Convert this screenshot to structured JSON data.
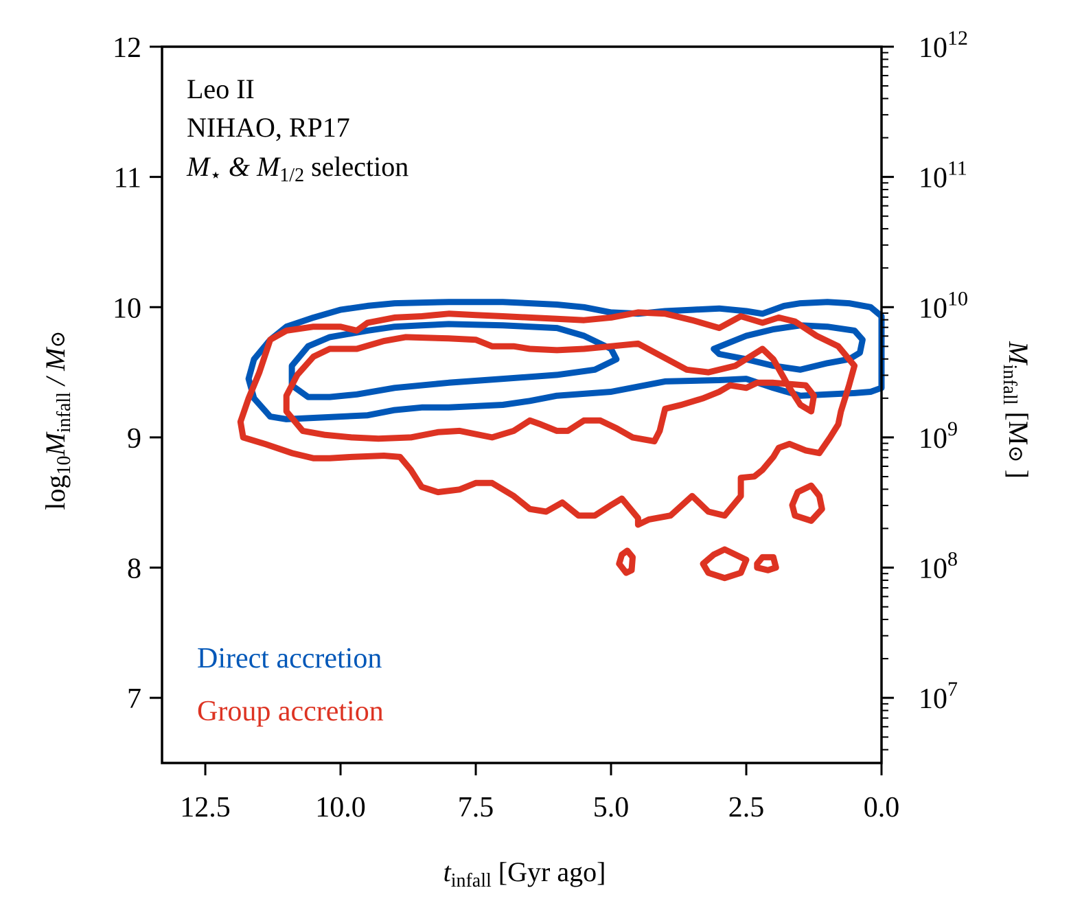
{
  "chart_data": {
    "type": "contour",
    "annotation_lines": [
      {
        "text": "Leo II"
      },
      {
        "text": "NIHAO, RP17"
      },
      {
        "main1": "M",
        "sub1": "⋆",
        "mid": " & M",
        "sub2": "1/2",
        "tail": " selection"
      }
    ],
    "xlabel": {
      "main": "t",
      "sub": "infall",
      "tail": " [Gyr ago]"
    },
    "ylabel": {
      "pre": "log",
      "sub1": "10",
      "main": "M",
      "sub2": "infall",
      "tail": " / M",
      "sym": "⊙"
    },
    "ylabel_right": {
      "main": "M",
      "sub": "infall",
      "tail": " [M",
      "sym": "⊙",
      "end": " ]"
    },
    "xlim": [
      13.3,
      0.0
    ],
    "ylim": [
      6.5,
      12.0
    ],
    "x_ticks": [
      {
        "value": 12.5,
        "label": "12.5"
      },
      {
        "value": 10.0,
        "label": "10.0"
      },
      {
        "value": 7.5,
        "label": "7.5"
      },
      {
        "value": 5.0,
        "label": "5.0"
      },
      {
        "value": 2.5,
        "label": "2.5"
      },
      {
        "value": 0.0,
        "label": "0.0"
      }
    ],
    "y_ticks": [
      {
        "value": 7,
        "label": "7"
      },
      {
        "value": 8,
        "label": "8"
      },
      {
        "value": 9,
        "label": "9"
      },
      {
        "value": 10,
        "label": "10"
      },
      {
        "value": 11,
        "label": "11"
      },
      {
        "value": 12,
        "label": "12"
      }
    ],
    "y_ticks_right": [
      {
        "value": 7,
        "base": "10",
        "exp": "7"
      },
      {
        "value": 8,
        "base": "10",
        "exp": "8"
      },
      {
        "value": 9,
        "base": "10",
        "exp": "9"
      },
      {
        "value": 10,
        "base": "10",
        "exp": "10"
      },
      {
        "value": 11,
        "base": "10",
        "exp": "11"
      },
      {
        "value": 12,
        "base": "10",
        "exp": "12"
      }
    ],
    "right_axis_scale": "log",
    "legend_position": "lower-left",
    "series": [
      {
        "name": "Direct accretion",
        "color": "#0057b8",
        "contours": [
          [
            [
              11.7,
              9.45
            ],
            [
              11.6,
              9.6
            ],
            [
              11.3,
              9.75
            ],
            [
              11.0,
              9.85
            ],
            [
              10.5,
              9.92
            ],
            [
              10.0,
              9.98
            ],
            [
              9.5,
              10.01
            ],
            [
              9.0,
              10.03
            ],
            [
              8.0,
              10.04
            ],
            [
              7.0,
              10.04
            ],
            [
              6.0,
              10.02
            ],
            [
              5.5,
              10.0
            ],
            [
              5.0,
              9.96
            ],
            [
              4.5,
              9.95
            ],
            [
              4.0,
              9.97
            ],
            [
              3.5,
              9.98
            ],
            [
              3.0,
              9.99
            ],
            [
              2.5,
              9.97
            ],
            [
              2.2,
              9.95
            ],
            [
              2.0,
              9.98
            ],
            [
              1.8,
              10.01
            ],
            [
              1.5,
              10.03
            ],
            [
              1.0,
              10.04
            ],
            [
              0.6,
              10.03
            ],
            [
              0.2,
              10.0
            ],
            [
              0.0,
              9.93
            ],
            [
              0.0,
              9.38
            ],
            [
              0.2,
              9.35
            ],
            [
              0.5,
              9.34
            ],
            [
              1.0,
              9.33
            ],
            [
              1.5,
              9.32
            ],
            [
              2.0,
              9.38
            ],
            [
              2.5,
              9.45
            ],
            [
              3.0,
              9.44
            ],
            [
              4.0,
              9.43
            ],
            [
              5.0,
              9.35
            ],
            [
              6.0,
              9.32
            ],
            [
              6.5,
              9.28
            ],
            [
              7.0,
              9.25
            ],
            [
              8.0,
              9.23
            ],
            [
              8.5,
              9.23
            ],
            [
              9.0,
              9.21
            ],
            [
              9.5,
              9.17
            ],
            [
              10.0,
              9.16
            ],
            [
              10.5,
              9.15
            ],
            [
              11.0,
              9.14
            ],
            [
              11.3,
              9.16
            ],
            [
              11.6,
              9.3
            ],
            [
              11.7,
              9.45
            ]
          ],
          [
            [
              10.9,
              9.4
            ],
            [
              10.9,
              9.55
            ],
            [
              10.6,
              9.7
            ],
            [
              10.2,
              9.77
            ],
            [
              9.5,
              9.82
            ],
            [
              9.0,
              9.85
            ],
            [
              8.5,
              9.86
            ],
            [
              8.0,
              9.87
            ],
            [
              7.0,
              9.86
            ],
            [
              6.0,
              9.84
            ],
            [
              5.5,
              9.78
            ],
            [
              5.0,
              9.68
            ],
            [
              4.9,
              9.6
            ],
            [
              5.0,
              9.58
            ],
            [
              5.3,
              9.52
            ],
            [
              6.0,
              9.48
            ],
            [
              7.0,
              9.45
            ],
            [
              8.0,
              9.42
            ],
            [
              9.0,
              9.38
            ],
            [
              9.7,
              9.33
            ],
            [
              10.2,
              9.31
            ],
            [
              10.6,
              9.31
            ],
            [
              10.9,
              9.4
            ]
          ],
          [
            [
              3.1,
              9.68
            ],
            [
              2.5,
              9.78
            ],
            [
              2.0,
              9.83
            ],
            [
              1.5,
              9.86
            ],
            [
              1.0,
              9.85
            ],
            [
              0.5,
              9.82
            ],
            [
              0.35,
              9.75
            ],
            [
              0.4,
              9.65
            ],
            [
              0.6,
              9.6
            ],
            [
              1.0,
              9.57
            ],
            [
              1.5,
              9.52
            ],
            [
              2.0,
              9.55
            ],
            [
              2.5,
              9.6
            ],
            [
              3.0,
              9.64
            ],
            [
              3.1,
              9.68
            ]
          ]
        ]
      },
      {
        "name": "Group accretion",
        "color": "#dd3322",
        "contours": [
          [
            [
              11.85,
              9.12
            ],
            [
              11.7,
              9.3
            ],
            [
              11.5,
              9.5
            ],
            [
              11.3,
              9.75
            ],
            [
              11.0,
              9.82
            ],
            [
              10.5,
              9.85
            ],
            [
              10.0,
              9.85
            ],
            [
              9.7,
              9.82
            ],
            [
              9.5,
              9.88
            ],
            [
              9.0,
              9.92
            ],
            [
              8.5,
              9.93
            ],
            [
              8.0,
              9.95
            ],
            [
              7.5,
              9.94
            ],
            [
              7.0,
              9.93
            ],
            [
              6.5,
              9.92
            ],
            [
              6.0,
              9.91
            ],
            [
              5.5,
              9.9
            ],
            [
              5.0,
              9.92
            ],
            [
              4.5,
              9.96
            ],
            [
              4.0,
              9.95
            ],
            [
              3.5,
              9.9
            ],
            [
              3.0,
              9.84
            ],
            [
              2.6,
              9.93
            ],
            [
              2.2,
              9.88
            ],
            [
              1.9,
              9.92
            ],
            [
              1.6,
              9.89
            ],
            [
              1.2,
              9.78
            ],
            [
              0.8,
              9.7
            ],
            [
              0.6,
              9.6
            ],
            [
              0.5,
              9.55
            ],
            [
              0.6,
              9.4
            ],
            [
              0.75,
              9.2
            ],
            [
              0.8,
              9.1
            ],
            [
              0.95,
              9.0
            ],
            [
              1.15,
              8.88
            ],
            [
              1.4,
              8.9
            ],
            [
              1.7,
              8.95
            ],
            [
              1.9,
              8.92
            ],
            [
              2.0,
              8.85
            ],
            [
              2.2,
              8.75
            ],
            [
              2.35,
              8.7
            ],
            [
              2.6,
              8.69
            ],
            [
              2.6,
              8.55
            ],
            [
              2.9,
              8.4
            ],
            [
              3.2,
              8.43
            ],
            [
              3.5,
              8.55
            ],
            [
              3.9,
              8.4
            ],
            [
              4.3,
              8.37
            ],
            [
              4.5,
              8.33
            ],
            [
              4.5,
              8.38
            ],
            [
              4.8,
              8.53
            ],
            [
              5.0,
              8.48
            ],
            [
              5.3,
              8.4
            ],
            [
              5.6,
              8.4
            ],
            [
              5.9,
              8.5
            ],
            [
              6.2,
              8.43
            ],
            [
              6.5,
              8.45
            ],
            [
              6.8,
              8.55
            ],
            [
              7.2,
              8.65
            ],
            [
              7.5,
              8.65
            ],
            [
              7.8,
              8.6
            ],
            [
              8.2,
              8.58
            ],
            [
              8.5,
              8.62
            ],
            [
              8.7,
              8.75
            ],
            [
              8.9,
              8.85
            ],
            [
              9.2,
              8.86
            ],
            [
              9.8,
              8.85
            ],
            [
              10.2,
              8.84
            ],
            [
              10.5,
              8.84
            ],
            [
              10.9,
              8.88
            ],
            [
              11.4,
              8.95
            ],
            [
              11.8,
              9.0
            ],
            [
              11.85,
              9.12
            ]
          ],
          [
            [
              11.0,
              9.2
            ],
            [
              11.0,
              9.32
            ],
            [
              10.8,
              9.48
            ],
            [
              10.5,
              9.62
            ],
            [
              10.2,
              9.68
            ],
            [
              9.7,
              9.68
            ],
            [
              9.2,
              9.74
            ],
            [
              8.8,
              9.77
            ],
            [
              8.0,
              9.76
            ],
            [
              7.5,
              9.75
            ],
            [
              7.2,
              9.7
            ],
            [
              6.8,
              9.7
            ],
            [
              6.5,
              9.68
            ],
            [
              6.0,
              9.67
            ],
            [
              5.5,
              9.68
            ],
            [
              5.0,
              9.7
            ],
            [
              4.5,
              9.72
            ],
            [
              3.6,
              9.52
            ],
            [
              3.2,
              9.5
            ],
            [
              2.7,
              9.55
            ],
            [
              2.2,
              9.68
            ],
            [
              2.0,
              9.6
            ],
            [
              1.7,
              9.38
            ],
            [
              1.5,
              9.25
            ],
            [
              1.3,
              9.2
            ],
            [
              1.25,
              9.32
            ],
            [
              1.4,
              9.4
            ],
            [
              2.0,
              9.42
            ],
            [
              2.3,
              9.42
            ],
            [
              2.5,
              9.38
            ],
            [
              2.8,
              9.4
            ],
            [
              3.0,
              9.35
            ],
            [
              3.3,
              9.3
            ],
            [
              3.7,
              9.25
            ],
            [
              4.0,
              9.22
            ],
            [
              4.1,
              9.05
            ],
            [
              4.2,
              8.97
            ],
            [
              4.6,
              9.0
            ],
            [
              4.9,
              9.07
            ],
            [
              5.2,
              9.13
            ],
            [
              5.5,
              9.13
            ],
            [
              5.8,
              9.05
            ],
            [
              6.0,
              9.05
            ],
            [
              6.3,
              9.1
            ],
            [
              6.5,
              9.13
            ],
            [
              6.8,
              9.05
            ],
            [
              7.2,
              9.0
            ],
            [
              7.8,
              9.05
            ],
            [
              8.2,
              9.04
            ],
            [
              8.7,
              9.0
            ],
            [
              9.3,
              8.99
            ],
            [
              9.8,
              9.0
            ],
            [
              10.3,
              9.02
            ],
            [
              10.7,
              9.05
            ],
            [
              11.0,
              9.2
            ]
          ],
          [
            [
              1.65,
              8.48
            ],
            [
              1.55,
              8.58
            ],
            [
              1.3,
              8.63
            ],
            [
              1.15,
              8.55
            ],
            [
              1.1,
              8.45
            ],
            [
              1.3,
              8.36
            ],
            [
              1.6,
              8.4
            ],
            [
              1.65,
              8.48
            ]
          ],
          [
            [
              4.85,
              8.03
            ],
            [
              4.8,
              8.1
            ],
            [
              4.7,
              8.13
            ],
            [
              4.6,
              8.08
            ],
            [
              4.62,
              7.98
            ],
            [
              4.72,
              7.96
            ],
            [
              4.85,
              8.03
            ]
          ],
          [
            [
              3.3,
              8.03
            ],
            [
              3.1,
              8.1
            ],
            [
              2.9,
              8.14
            ],
            [
              2.7,
              8.1
            ],
            [
              2.5,
              8.06
            ],
            [
              2.6,
              7.96
            ],
            [
              2.9,
              7.92
            ],
            [
              3.2,
              7.96
            ],
            [
              3.3,
              8.03
            ]
          ],
          [
            [
              2.3,
              8.03
            ],
            [
              2.2,
              8.08
            ],
            [
              2.0,
              8.08
            ],
            [
              1.95,
              8.0
            ],
            [
              2.1,
              7.98
            ],
            [
              2.3,
              8.0
            ],
            [
              2.3,
              8.03
            ]
          ]
        ]
      }
    ]
  }
}
